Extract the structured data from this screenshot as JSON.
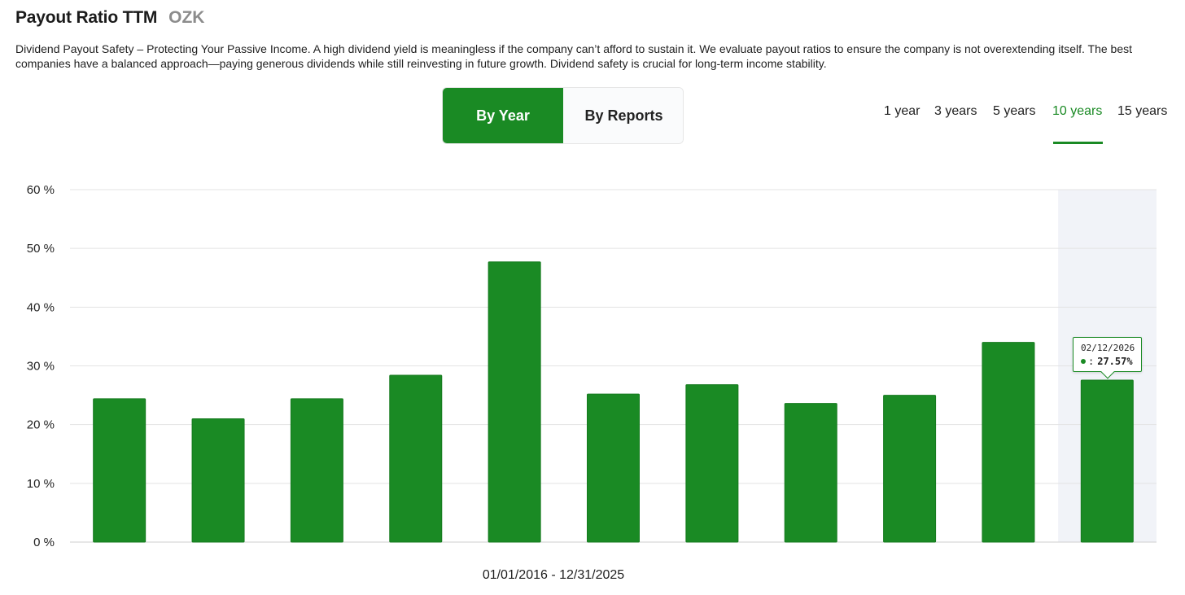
{
  "header": {
    "title": "Payout Ratio TTM",
    "ticker": "OZK"
  },
  "description": "Dividend Payout Safety – Protecting Your Passive Income. A high dividend yield is meaningless if the company can’t afford to sustain it. We evaluate payout ratios to ensure the company is not overextending itself. The best companies have a balanced approach—paying generous dividends while still reinvesting in future growth. Dividend safety is crucial for long-term income stability.",
  "toggle": {
    "by_year": "By Year",
    "by_reports": "By Reports",
    "active": "by_year"
  },
  "ranges": {
    "items": [
      "1 year",
      "3 years",
      "5 years",
      "10 years",
      "15 years"
    ],
    "active": "10 years"
  },
  "date_range": "01/01/2016 - 12/31/2025",
  "colors": {
    "accent": "#1a8a24",
    "bar": "#1a8a24",
    "highlight_bg": "#f1f3f8",
    "grid": "#e3e3e3"
  },
  "tooltip": {
    "date": "02/12/2026",
    "value": "27.57%"
  },
  "chart_data": {
    "type": "bar",
    "series": [
      {
        "name": "",
        "values": [
          24.4,
          21.0,
          24.4,
          28.4,
          47.7,
          25.2,
          26.8,
          23.6,
          25.0,
          34.0,
          27.57
        ]
      }
    ],
    "highlight_index": 10,
    "ylim": [
      0,
      60
    ],
    "yticks": [
      0,
      10,
      20,
      30,
      40,
      50,
      60
    ],
    "ytick_labels": [
      "0 %",
      "10 %",
      "20 %",
      "30 %",
      "40 %",
      "50 %",
      "60 %"
    ],
    "grid": true,
    "title": "",
    "xlabel": "",
    "ylabel": ""
  }
}
